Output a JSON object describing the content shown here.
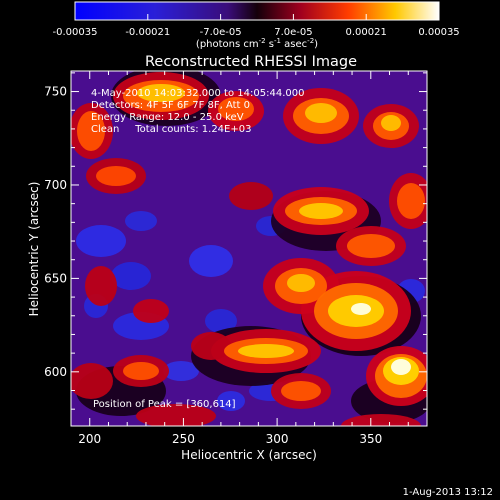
{
  "chart_data": {
    "type": "heatmap",
    "title": "Reconstructed RHESSI Image",
    "xlabel": "Heliocentric X (arcsec)",
    "ylabel": "Heliocentric Y (arcsec)",
    "xlim": [
      190,
      380
    ],
    "ylim": [
      571,
      761
    ],
    "xticks": [
      200,
      250,
      300,
      350
    ],
    "yticks": [
      600,
      650,
      700,
      750
    ],
    "colorbar": {
      "ticks": [
        "-0.00035",
        "-0.00021",
        "-7.0e-05",
        "7.0e-05",
        "0.00021",
        "0.00035"
      ],
      "min": -0.00035,
      "max": 0.00035,
      "label_main": "(photons cm",
      "label_exp1": "-2",
      "label_mid": " s",
      "label_exp2": "-1",
      "label_end": " asec",
      "label_exp3": "-2",
      "label_close": ")"
    },
    "annotations": [
      "4-May-2010 14:03:32.000 to 14:05:44.000",
      "Detectors: 4F 5F 6F 7F 8F, Att 0",
      "Energy Range: 12.0 - 25.0 keV",
      "Clean     Total counts: 1.24E+03"
    ],
    "peak_label": "Position of Peak = [360,614]",
    "peak": [
      360,
      614
    ],
    "colors": {
      "low": "#1e1eff",
      "neutral": "#4a0d8f",
      "high": "#ffffff"
    }
  },
  "footer": {
    "date": "1-Aug-2013 13:12"
  }
}
